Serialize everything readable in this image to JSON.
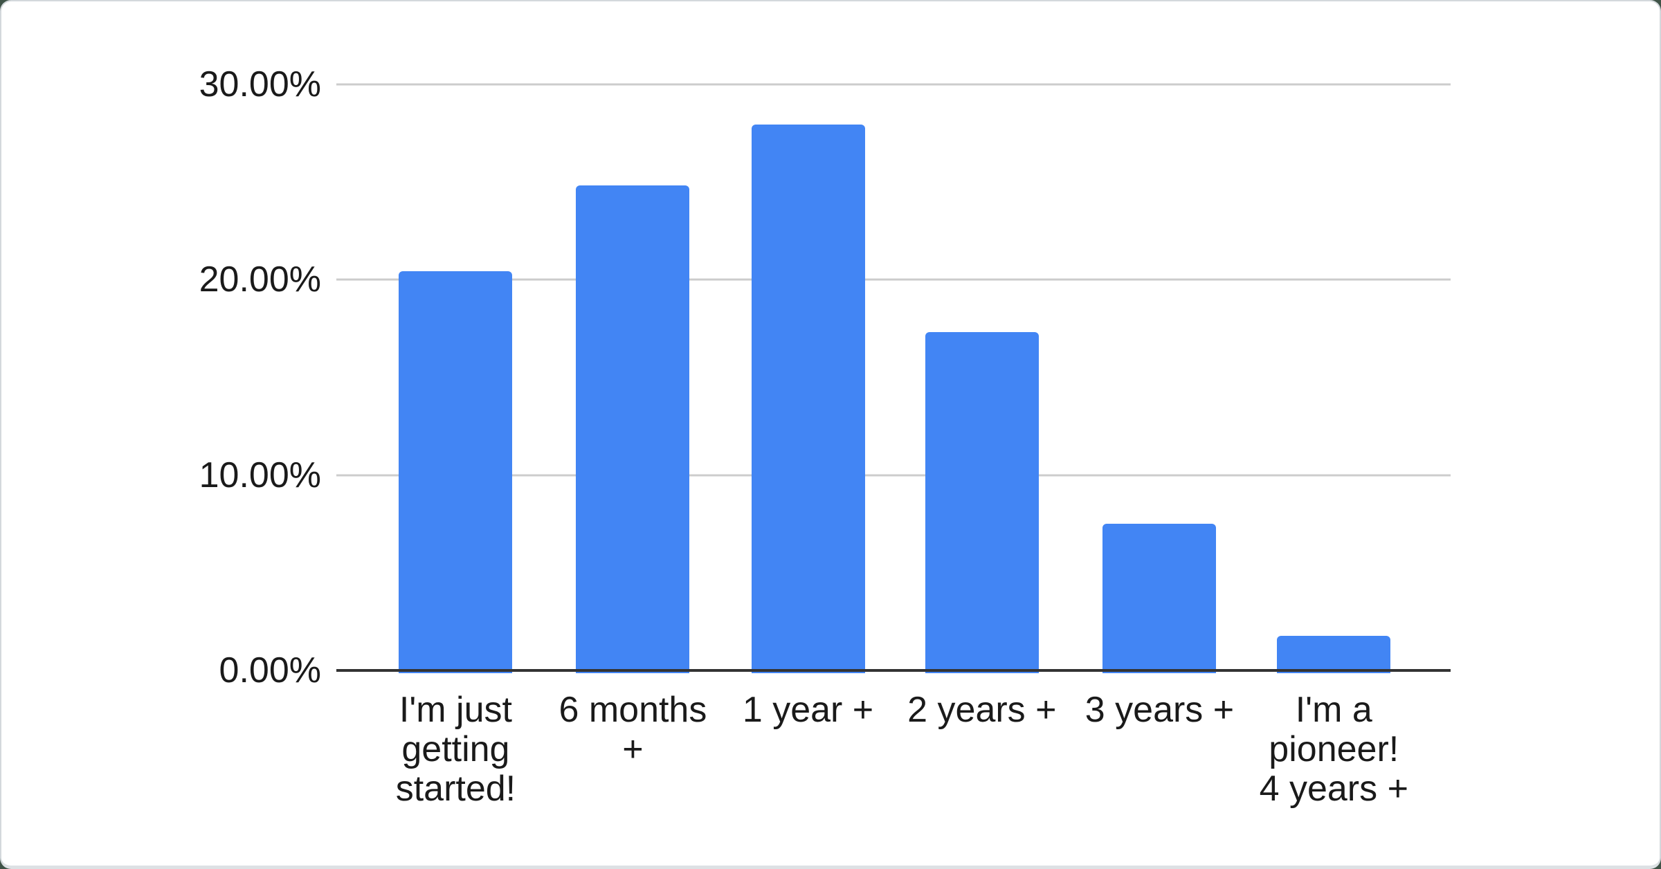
{
  "chart_data": {
    "type": "bar",
    "title": "",
    "xlabel": "",
    "ylabel": "",
    "categories": [
      "I'm just getting started!",
      "6 months +",
      "1 year +",
      "2 years +",
      "3 years +",
      "I'm a pioneer! 4 years +"
    ],
    "xtick_labels": [
      "I'm just\ngetting\nstarted!",
      "6 months\n+",
      "1 year +",
      "2 years +",
      "3 years +",
      "I'm a\npioneer!\n4 years +"
    ],
    "values": [
      20.45,
      24.83,
      27.95,
      17.32,
      7.52,
      1.76
    ],
    "value_format": "percent",
    "ylim": [
      0,
      30
    ],
    "yticks": [
      0,
      10,
      20,
      30
    ],
    "ytick_labels": [
      "0.00%",
      "10.00%",
      "20.00%",
      "30.00%"
    ],
    "grid": "horizontal",
    "legend": "none",
    "colors": {
      "bar": "#4285f4",
      "gridline": "#cccccc",
      "axis_line": "#333333",
      "text": "#1a1a1a",
      "card_background": "#ffffff",
      "card_border": "#d3d8dc",
      "page_background": "#3f5347"
    }
  }
}
